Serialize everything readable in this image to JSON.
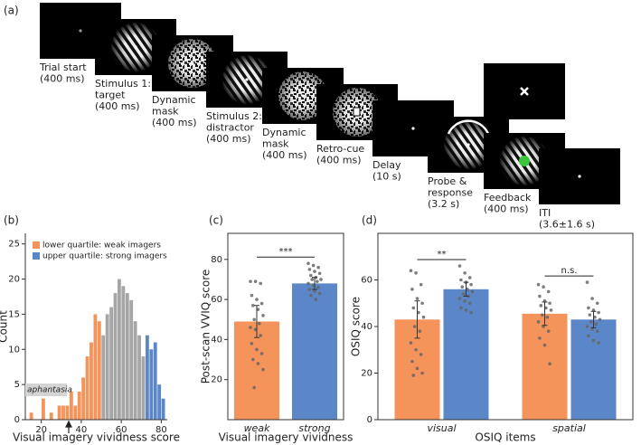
{
  "panel_labels": [
    "(a)",
    "(b)",
    "(c)",
    "(d)"
  ],
  "trial_sequence": [
    {
      "lines": [
        "Trial start",
        "(400 ms)"
      ]
    },
    {
      "lines": [
        "Stimulus 1:",
        "target",
        "(400 ms)"
      ]
    },
    {
      "lines": [
        "Dynamic",
        "mask",
        "(400 ms)"
      ]
    },
    {
      "lines": [
        "Stimulus 2:",
        "distractor",
        "(400 ms)"
      ]
    },
    {
      "lines": [
        "Dynamic",
        "mask",
        "(400 ms)"
      ]
    },
    {
      "lines": [
        "Retro-cue",
        "(400 ms)"
      ]
    },
    {
      "lines": [
        "Delay",
        "(10 s)"
      ]
    },
    {
      "lines": [
        "Probe &",
        "response",
        "(3.2 s)"
      ]
    },
    {
      "lines": [
        "Feedback",
        "(400 ms)"
      ]
    },
    {
      "lines": [
        "ITI",
        "(3.6±1.6 s)"
      ]
    }
  ],
  "chart_data": [
    {
      "type": "histogram",
      "xlabel": "Visual imagery vividness score",
      "ylabel": "Count",
      "xlim": [
        12,
        83
      ],
      "xticks": [
        20,
        40,
        60,
        80
      ],
      "ylim": [
        0,
        26.5
      ],
      "yticks": [
        0,
        5,
        10,
        15,
        20,
        25
      ],
      "annotation": "aphantasia",
      "series": [
        {
          "name": "lower quartile: weak imagers",
          "color": "#f4935a",
          "bins": [
            14,
            16,
            18,
            20,
            22,
            24,
            26,
            28,
            30,
            32,
            34,
            36,
            38,
            40,
            42,
            44,
            46,
            48,
            50
          ],
          "counts": [
            1,
            0,
            0,
            3,
            0,
            1,
            0,
            2,
            2,
            2,
            4,
            2,
            4,
            6,
            9,
            11,
            15,
            14
          ]
        },
        {
          "color": "#a6a6a6",
          "bins": [
            50,
            52,
            54,
            56,
            58,
            60,
            62,
            64,
            66,
            68,
            70,
            72
          ],
          "counts": [
            12,
            15,
            16,
            18,
            20,
            19,
            18,
            17,
            14,
            12,
            9
          ]
        },
        {
          "name": "upper quartile: strong imagers",
          "color": "#5b87c8",
          "bins": [
            72,
            74,
            76,
            78,
            80,
            82
          ],
          "counts": [
            12,
            10,
            11,
            5,
            3
          ]
        }
      ]
    },
    {
      "type": "bar",
      "xlabel": "Visual imagery vividness",
      "ylabel": "Post-scan VVIQ score",
      "categories": [
        "weak",
        "strong"
      ],
      "values": [
        49,
        68
      ],
      "errors": [
        8,
        3
      ],
      "colors": [
        "#f4935a",
        "#5b87c8"
      ],
      "points": [
        [
          69,
          69,
          68,
          62,
          60,
          58,
          57,
          55,
          52,
          50,
          48,
          46,
          45,
          42,
          38,
          35,
          33,
          30,
          28,
          25,
          16
        ],
        [
          78,
          77,
          76,
          75,
          74,
          73,
          72,
          71,
          70,
          70,
          69,
          68,
          67,
          66,
          65,
          64,
          63,
          62,
          60
        ]
      ],
      "ylim": [
        0,
        93
      ],
      "yticks": [
        20,
        40,
        60,
        80
      ],
      "significance": "***"
    },
    {
      "type": "grouped_bar",
      "xlabel": "OSIQ items",
      "ylabel": "OSIQ score",
      "categories": [
        "visual",
        "spatial"
      ],
      "series": [
        {
          "color": "#f4935a",
          "values": [
            43,
            45.5
          ],
          "errors": [
            8,
            5
          ],
          "points": [
            [
              64,
              63,
              58,
              56,
              52,
              50,
              48,
              46,
              44,
              40,
              38,
              33,
              30,
              28,
              25,
              22,
              20,
              19
            ],
            [
              58,
              57,
              55,
              53,
              51,
              50,
              49,
              48,
              47,
              45,
              44,
              42,
              40,
              38,
              35,
              32,
              24
            ]
          ]
        },
        {
          "color": "#5b87c8",
          "values": [
            56,
            43
          ],
          "errors": [
            3,
            3.5
          ],
          "points": [
            [
              66,
              63,
              61,
              60,
              59,
              58,
              57,
              56,
              55,
              54,
              53,
              52,
              51,
              50,
              48,
              47,
              46
            ],
            [
              59,
              52,
              50,
              48,
              47,
              46,
              45,
              44,
              43,
              42,
              41,
              40,
              39,
              38,
              36,
              34,
              33
            ]
          ]
        }
      ],
      "ylim": [
        0,
        80
      ],
      "yticks": [
        0,
        20,
        40,
        60
      ],
      "significance": [
        "**",
        "n.s."
      ]
    }
  ]
}
